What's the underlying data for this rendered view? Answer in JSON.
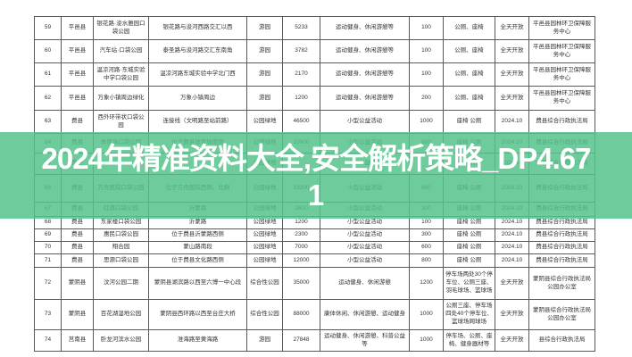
{
  "watermark": {
    "line1": "2024年精准资料大全,安全解析策略_DP4.67",
    "line2": "1",
    "full_text": "2024年精准资料大全,安全解析策略_DP4.671"
  },
  "colors": {
    "banner_green": "#55C28B",
    "table_border": "#595959",
    "table_text": "#333333",
    "banner_text": "#FFFFFF"
  },
  "table": {
    "rows": [
      [
        "59",
        "平邑县",
        "银花路·浚水雅园口袋公园",
        "银花路与浚河西路交汇以西",
        "游园",
        "5233",
        "运动健身、休闲游憩等",
        "100",
        "公厕、座椅",
        "全天开放",
        "平邑县园林环卫保障服务中心"
      ],
      [
        "60",
        "平邑县",
        "汽车站·口袋公园",
        "泰圣路与浚河路交汇东南角",
        "游园",
        "3782",
        "运动健身、休闲游憩等",
        "100",
        "公厕、座椅",
        "全天开放",
        "平邑县园林环卫保障服务中心"
      ],
      [
        "61",
        "平邑县",
        "温凉河路·东城实验中学口袋公园",
        "温凉河路东城实验中学北门西",
        "游园",
        "2170",
        "运动健身、休闲游憩等",
        "100",
        "公厕、座椅",
        "全天开放",
        "平邑县园林环卫保障服务中心"
      ],
      [
        "62",
        "平邑县",
        "万象小镇周边绿化",
        "万象小镇周边",
        "游园",
        "1200",
        "运动健身、休闲游憩等",
        "200",
        "公厕、座椅",
        "全天开放",
        "平邑县园林环卫保障服务中心"
      ],
      [
        "63",
        "费县",
        "西外环带状口袋公园",
        "连接线（文明路至站前路）",
        "公园绿地",
        "46500",
        "小型公益活动",
        "1000",
        "座椅 公厕",
        "2024.10",
        "费县综合行政执法局"
      ],
      [
        "64",
        "费县",
        "体育场口袋公园",
        "位于费县体育场南侧",
        "公园绿地",
        "10000",
        "小型公益活动",
        "800",
        "座椅 公厕",
        "2024.10",
        "费县综合行政执法局"
      ],
      [
        "65",
        "费县",
        "",
        "",
        "公园绿地",
        "",
        "小型公益活动",
        "",
        "座椅 公厕",
        "2024.10",
        "费县综合行政执法局"
      ],
      [
        "66",
        "费县",
        "方舟医院口袋公园",
        "位于方舟医院西侧、北侧",
        "公园绿地",
        "19200",
        "小型公益活动",
        "800",
        "座椅 公厕",
        "2024.10",
        "费县综合行政执法局"
      ],
      [
        "67",
        "费县",
        "红旗口袋公园",
        "沂蒙路",
        "公园绿地",
        "2600",
        "小型公益活动",
        "300",
        "座椅 公厕",
        "2024.10",
        "费县综合行政执法局"
      ],
      [
        "68",
        "费县",
        "东家楼口袋公园",
        "沂蒙路",
        "公园绿地",
        "1200",
        "小型公益活动",
        "100",
        "座椅 公厕",
        "2024.10",
        "费县综合行政执法局"
      ],
      [
        "69",
        "费县",
        "惠民口袋公园",
        "位于费县沂蒙路西侧",
        "公园绿地",
        "2300",
        "小型公益活动",
        "300",
        "座椅 公厕",
        "2024.10",
        "费县综合行政执法局"
      ],
      [
        "70",
        "费县",
        "翔合园",
        "蒙山路南段",
        "公园绿地",
        "7000",
        "小型公益活动",
        "600",
        "座椅 公厕",
        "2024.10",
        "费县综合行政执法局"
      ],
      [
        "71",
        "费县",
        "思源口袋公园",
        "位于费县文化路西侧",
        "公园绿地",
        "12000",
        "小型公益活动",
        "800",
        "座椅 公厕",
        "2024.10",
        "费县综合行政执法局"
      ],
      [
        "72",
        "蒙阴县",
        "汶河公园二期",
        "蒙阴县湖滨路以西至六博一中心段",
        "综合性公园",
        "35000",
        "运动健身、休闲游憩",
        "1200",
        "停车场两处30个停车位、公厕三座、羽毛球场、篮球场",
        "全天开放",
        "蒙阴县综合行政执法局公园办公室"
      ],
      [
        "73",
        "蒙阴县",
        "百花湖湿地公园",
        "蒙阴县西环路以西至台庄大桥",
        "综合性公园",
        "88000",
        "康体休闲、休闲游憩、运动健身",
        "1000",
        "公厕三座、停车场四处40个停车位、篮球场网球场",
        "全天开放",
        "蒙阴县综合行政执法局公园办公室"
      ],
      [
        "74",
        "莒南县",
        "卧龙河滨水公园",
        "淮海路至黄海路",
        "游园",
        "27848",
        "运动健身、休闲游憩、科普公益等",
        "1000",
        "停车场、公厕、座椅、健身器材等",
        "全天开放",
        "县综合行政执法局"
      ]
    ]
  }
}
